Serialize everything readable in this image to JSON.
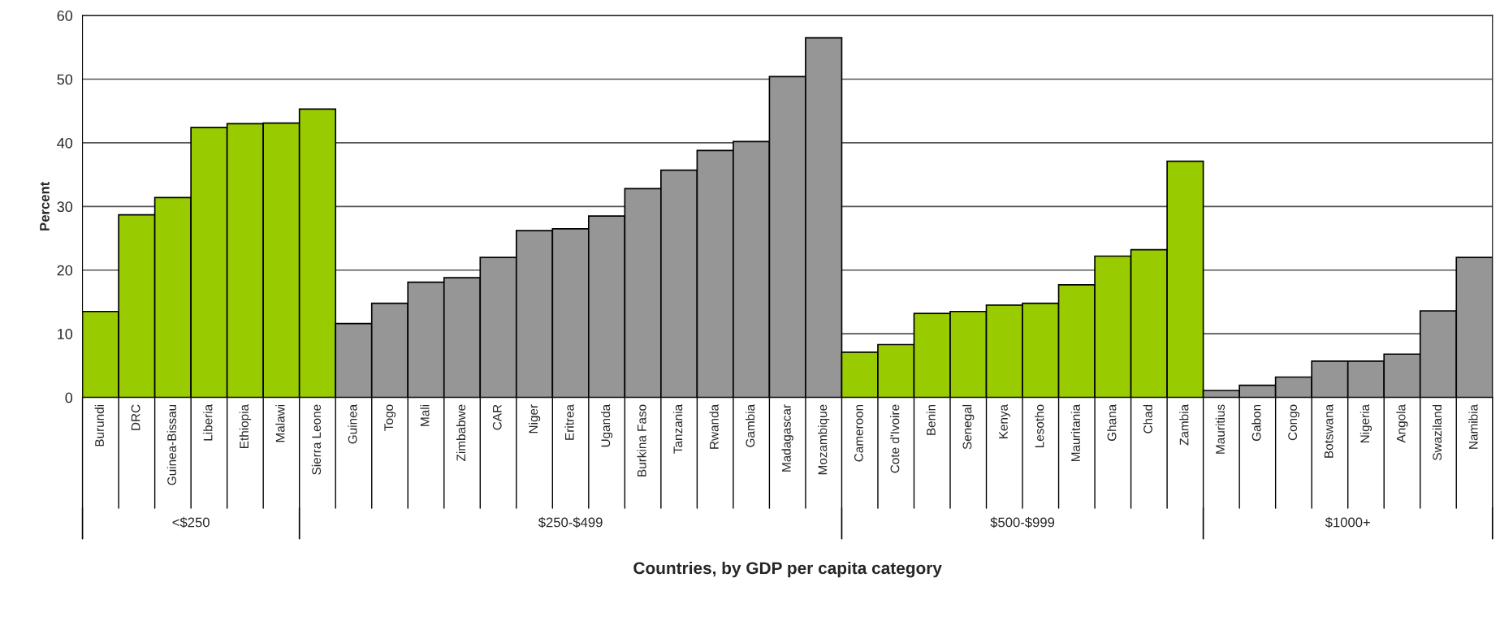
{
  "chart_data": {
    "type": "bar",
    "xlabel": "Countries, by GDP per capita category",
    "ylabel": "Percent",
    "categories": [
      "Burundi",
      "DRC",
      "Guinea-Bissau",
      "Liberia",
      "Ethiopia",
      "Malawi",
      "Sierra Leone",
      "Guinea",
      "Togo",
      "Mali",
      "Zimbabwe",
      "CAR",
      "Niger",
      "Eritrea",
      "Uganda",
      "Burkina Faso",
      "Tanzania",
      "Rwanda",
      "Gambia",
      "Madagascar",
      "Mozambique",
      "Cameroon",
      "Cote d'Ivoire",
      "Benin",
      "Senegal",
      "Kenya",
      "Lesotho",
      "Mauritania",
      "Ghana",
      "Chad",
      "Zambia",
      "Mauritius",
      "Gabon",
      "Congo",
      "Botswana",
      "Nigeria",
      "Angola",
      "Swaziland",
      "Namibia"
    ],
    "values": [
      13.5,
      28.7,
      31.4,
      42.4,
      43.0,
      43.1,
      45.3,
      11.6,
      14.8,
      18.1,
      18.8,
      22.0,
      26.2,
      26.5,
      28.5,
      32.8,
      35.7,
      38.8,
      40.2,
      50.4,
      56.5,
      7.1,
      8.3,
      13.2,
      13.5,
      14.5,
      14.8,
      17.7,
      22.2,
      23.2,
      37.1,
      1.1,
      1.9,
      3.2,
      5.7,
      5.7,
      6.8,
      13.6,
      22.0
    ],
    "colors": [
      "#99cc00",
      "#99cc00",
      "#99cc00",
      "#99cc00",
      "#99cc00",
      "#99cc00",
      "#99cc00",
      "#969696",
      "#969696",
      "#969696",
      "#969696",
      "#969696",
      "#969696",
      "#969696",
      "#969696",
      "#969696",
      "#969696",
      "#969696",
      "#969696",
      "#969696",
      "#969696",
      "#99cc00",
      "#99cc00",
      "#99cc00",
      "#99cc00",
      "#99cc00",
      "#99cc00",
      "#99cc00",
      "#99cc00",
      "#99cc00",
      "#99cc00",
      "#969696",
      "#969696",
      "#969696",
      "#969696",
      "#969696",
      "#969696",
      "#969696",
      "#969696"
    ],
    "ylim": [
      0,
      60
    ],
    "yticks": [
      0,
      10,
      20,
      30,
      40,
      50,
      60
    ],
    "grid": "y",
    "annotations": [
      "<$250",
      "$250-$499",
      "$500-$999",
      "$1000+"
    ]
  }
}
